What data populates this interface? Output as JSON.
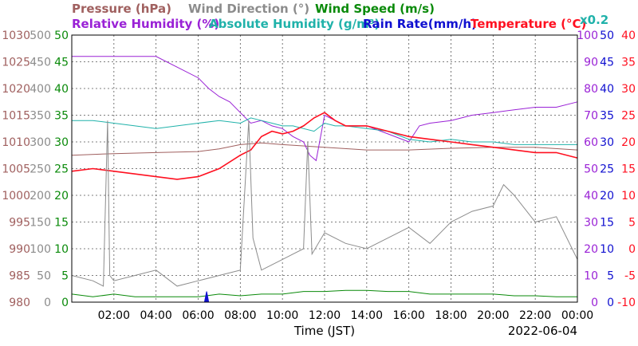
{
  "chart_data": {
    "type": "line",
    "legend": [
      {
        "label": "Pressure (hPa)",
        "color": "#a0605f"
      },
      {
        "label": "Wind Direction (°)",
        "color": "#8c8c8c"
      },
      {
        "label": "Wind Speed (m/s)",
        "color": "#0a8a0a"
      },
      {
        "label": "Relative Humidity (%)",
        "color": "#9a22d6"
      },
      {
        "label": "Absolute Humidity (g/m³)",
        "color": "#20b2aa"
      },
      {
        "label": "Rain Rate(mm/h)",
        "color": "#1010d0"
      },
      {
        "label": "Temperature (°C)",
        "color": "#ff1020"
      }
    ],
    "scale_note": "x0.2",
    "xlabel": "Time (JST)",
    "date": "2022-06-04",
    "x_ticks": [
      "02:00",
      "04:00",
      "06:00",
      "08:00",
      "10:00",
      "12:00",
      "14:00",
      "16:00",
      "18:00",
      "20:00",
      "22:00",
      "00:00"
    ],
    "x_range": [
      0,
      24
    ],
    "axes": {
      "pressure": {
        "color": "#a0605f",
        "ticks": [
          "1030",
          "1025",
          "1020",
          "1015",
          "1010",
          "1005",
          "1000",
          "995",
          "990",
          "985",
          "980"
        ],
        "range": [
          980,
          1030
        ]
      },
      "direction": {
        "color": "#8c8c8c",
        "ticks": [
          "500",
          "450",
          "400",
          "350",
          "300",
          "250",
          "200",
          "150",
          "100",
          "50",
          "0"
        ],
        "range": [
          0,
          500
        ]
      },
      "speed": {
        "color": "#0a8a0a",
        "ticks": [
          "50",
          "45",
          "40",
          "35",
          "30",
          "25",
          "20",
          "15",
          "10",
          "5",
          "0"
        ],
        "range": [
          0,
          50
        ]
      },
      "humidity": {
        "color": "#9a22d6",
        "ticks": [
          "100",
          "90",
          "80",
          "70",
          "60",
          "50",
          "40",
          "30",
          "20",
          "10",
          "0"
        ],
        "range": [
          0,
          100
        ]
      },
      "rain": {
        "color": "#1010d0",
        "ticks": [
          "50",
          "45",
          "40",
          "35",
          "30",
          "25",
          "20",
          "15",
          "10",
          "5",
          "0"
        ],
        "range": [
          0,
          50
        ]
      },
      "temperature": {
        "color": "#ff1020",
        "ticks": [
          "40",
          "35",
          "30",
          "25",
          "20",
          "15",
          "10",
          "5",
          "0",
          "-5",
          "-10"
        ],
        "range": [
          -10,
          40
        ]
      }
    },
    "series": [
      {
        "name": "Pressure (hPa)",
        "axis": "pressure",
        "color": "#a0605f",
        "x": [
          0,
          2,
          4,
          6,
          7,
          8,
          9,
          10,
          12,
          14,
          16,
          18,
          20,
          22,
          24
        ],
        "y": [
          1007.5,
          1007.8,
          1008,
          1008.2,
          1008.7,
          1009.5,
          1009.8,
          1009.5,
          1009,
          1008.5,
          1008.5,
          1008.8,
          1009,
          1009,
          1008.5
        ]
      },
      {
        "name": "Relative Humidity (%)",
        "axis": "humidity",
        "color": "#9a22d6",
        "x": [
          0,
          3.3,
          4,
          5,
          6,
          6.5,
          7,
          7.5,
          8,
          8.5,
          9,
          9.5,
          10,
          10.5,
          11,
          11.3,
          11.6,
          12,
          12.5,
          13,
          14,
          15,
          16,
          16.5,
          17,
          18,
          19,
          20,
          21,
          22,
          23,
          24
        ],
        "y": [
          92,
          92,
          92,
          88,
          84,
          80,
          77,
          75,
          71,
          67,
          68,
          66,
          65,
          62,
          60,
          55,
          53,
          70,
          68,
          66,
          66,
          63,
          60,
          66,
          67,
          68,
          70,
          71,
          72,
          73,
          73,
          75
        ]
      },
      {
        "name": "Absolute Humidity (g/m³)",
        "axis": "humidity",
        "color": "#20b2aa",
        "x": [
          0,
          1,
          2,
          3,
          4,
          5,
          6,
          7,
          8,
          8.5,
          9,
          9.5,
          10,
          10.5,
          11,
          11.5,
          12,
          12.5,
          13,
          14,
          15,
          16,
          17,
          18,
          19,
          20,
          21,
          22,
          23,
          24
        ],
        "y": [
          68,
          68,
          67,
          66,
          65,
          66,
          67,
          68,
          67,
          69,
          68,
          67,
          66,
          66,
          65,
          64,
          67,
          66,
          66,
          65,
          64,
          61,
          60,
          61,
          60,
          60,
          59,
          59,
          59,
          59
        ]
      },
      {
        "name": "Temperature (°C)",
        "axis": "temperature",
        "color": "#ff1020",
        "x": [
          0,
          1,
          2,
          3,
          4,
          5,
          6,
          7,
          8,
          8.5,
          9,
          9.5,
          10,
          10.5,
          11,
          11.5,
          12,
          12.5,
          13,
          14,
          15,
          16,
          17,
          18,
          19,
          20,
          21,
          22,
          23,
          24
        ],
        "y": [
          14.5,
          15,
          14.5,
          14,
          13.5,
          13,
          13.5,
          15,
          17.5,
          18.5,
          21,
          22,
          21.5,
          22,
          23,
          24.5,
          25.5,
          24,
          23,
          23,
          22,
          21,
          20.5,
          20,
          19.5,
          19,
          18.5,
          18,
          18,
          17
        ]
      },
      {
        "name": "Wind Speed (m/s)",
        "axis": "speed",
        "color": "#0a8a0a",
        "x": [
          0,
          1,
          2,
          3,
          4,
          5,
          6,
          7,
          8,
          9,
          10,
          11,
          12,
          13,
          14,
          15,
          16,
          17,
          18,
          19,
          20,
          21,
          22,
          23,
          24
        ],
        "y": [
          1.5,
          1,
          1.5,
          1,
          1,
          1,
          1,
          1.5,
          1.2,
          1.5,
          1.5,
          2,
          2,
          2.2,
          2.2,
          2,
          2,
          1.5,
          1.5,
          1.5,
          1.5,
          1.2,
          1.2,
          1,
          1
        ]
      },
      {
        "name": "Wind Direction (°)",
        "axis": "direction",
        "color": "#8c8c8c",
        "x": [
          0,
          1,
          1.5,
          1.7,
          1.8,
          2,
          3,
          4,
          5,
          6,
          7,
          8,
          8.4,
          8.6,
          9,
          10,
          10.5,
          11,
          11.2,
          11.4,
          12,
          13,
          14,
          15,
          16,
          17,
          18,
          19,
          20,
          20.5,
          21,
          22,
          23,
          24
        ],
        "y": [
          50,
          40,
          30,
          340,
          50,
          40,
          50,
          60,
          30,
          40,
          50,
          60,
          340,
          120,
          60,
          80,
          90,
          100,
          300,
          90,
          130,
          110,
          100,
          120,
          140,
          110,
          150,
          170,
          180,
          220,
          200,
          150,
          160,
          80
        ]
      },
      {
        "name": "Rain Rate(mm/h)",
        "axis": "rain",
        "color": "#1010d0",
        "x": [
          6.3,
          6.4,
          6.5
        ],
        "y": [
          0,
          2,
          0
        ]
      }
    ]
  }
}
